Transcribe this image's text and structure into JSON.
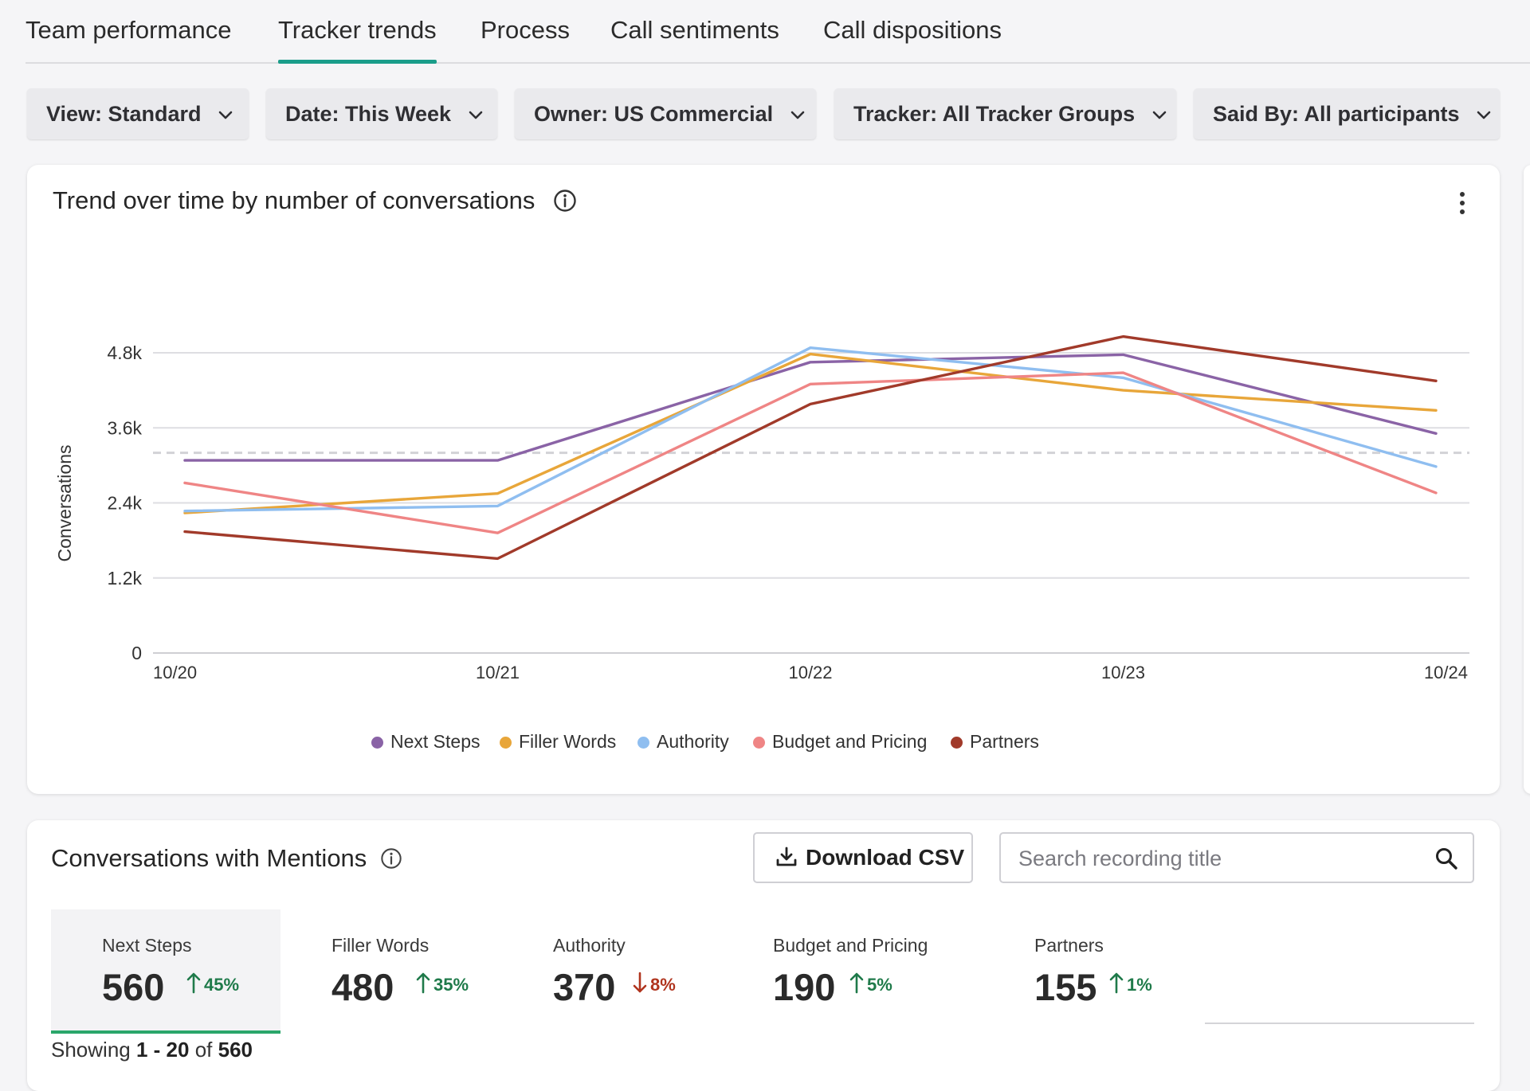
{
  "tabs": [
    {
      "label": "Team performance",
      "active": false
    },
    {
      "label": "Tracker trends",
      "active": true
    },
    {
      "label": "Process",
      "active": false
    },
    {
      "label": "Call sentiments",
      "active": false
    },
    {
      "label": "Call dispositions",
      "active": false
    }
  ],
  "filters": [
    {
      "label": "View: Standard"
    },
    {
      "label": "Date: This Week"
    },
    {
      "label": "Owner: US Commercial"
    },
    {
      "label": "Tracker: All Tracker Groups"
    },
    {
      "label": "Said By: All participants"
    }
  ],
  "trend_card": {
    "title": "Trend over time by number of conversations"
  },
  "chart_data": {
    "type": "line",
    "title": "Trend over time by number of conversations",
    "xlabel": "",
    "ylabel": "Conversations",
    "categories": [
      "10/20",
      "10/21",
      "10/22",
      "10/23",
      "10/24"
    ],
    "ylim": [
      0,
      4800
    ],
    "yticks": [
      {
        "value": 0,
        "label": "0"
      },
      {
        "value": 1200,
        "label": "1.2k"
      },
      {
        "value": 2400,
        "label": "2.4k"
      },
      {
        "value": 3600,
        "label": "3.6k"
      },
      {
        "value": 4800,
        "label": "4.8k"
      }
    ],
    "reference_line": 3200,
    "grid": true,
    "legend_position": "bottom",
    "series": [
      {
        "name": "Next Steps",
        "color": "#8a63a6",
        "values": [
          3080,
          3080,
          4650,
          4770,
          3510
        ]
      },
      {
        "name": "Filler Words",
        "color": "#e8a63a",
        "values": [
          2240,
          2550,
          4780,
          4200,
          3880
        ]
      },
      {
        "name": "Authority",
        "color": "#8fbef0",
        "values": [
          2270,
          2350,
          4880,
          4400,
          2980
        ]
      },
      {
        "name": "Budget and Pricing",
        "color": "#ef8585",
        "values": [
          2720,
          1920,
          4300,
          4480,
          2560
        ]
      },
      {
        "name": "Partners",
        "color": "#a13a2a",
        "values": [
          1940,
          1510,
          3980,
          5060,
          4350
        ]
      }
    ]
  },
  "mentions": {
    "title": "Conversations with Mentions",
    "download_label": "Download CSV",
    "search_placeholder": "Search recording title",
    "metrics": [
      {
        "name": "Next Steps",
        "value": "560",
        "change": "45%",
        "direction": "up"
      },
      {
        "name": "Filler Words",
        "value": "480",
        "change": "35%",
        "direction": "up"
      },
      {
        "name": "Authority",
        "value": "370",
        "change": "8%",
        "direction": "down"
      },
      {
        "name": "Budget and Pricing",
        "value": "190",
        "change": "5%",
        "direction": "up"
      },
      {
        "name": "Partners",
        "value": "155",
        "change": "1%",
        "direction": "up"
      }
    ],
    "showing": {
      "prefix": "Showing",
      "range": "1 - 20",
      "of": "of",
      "total": "560"
    }
  }
}
